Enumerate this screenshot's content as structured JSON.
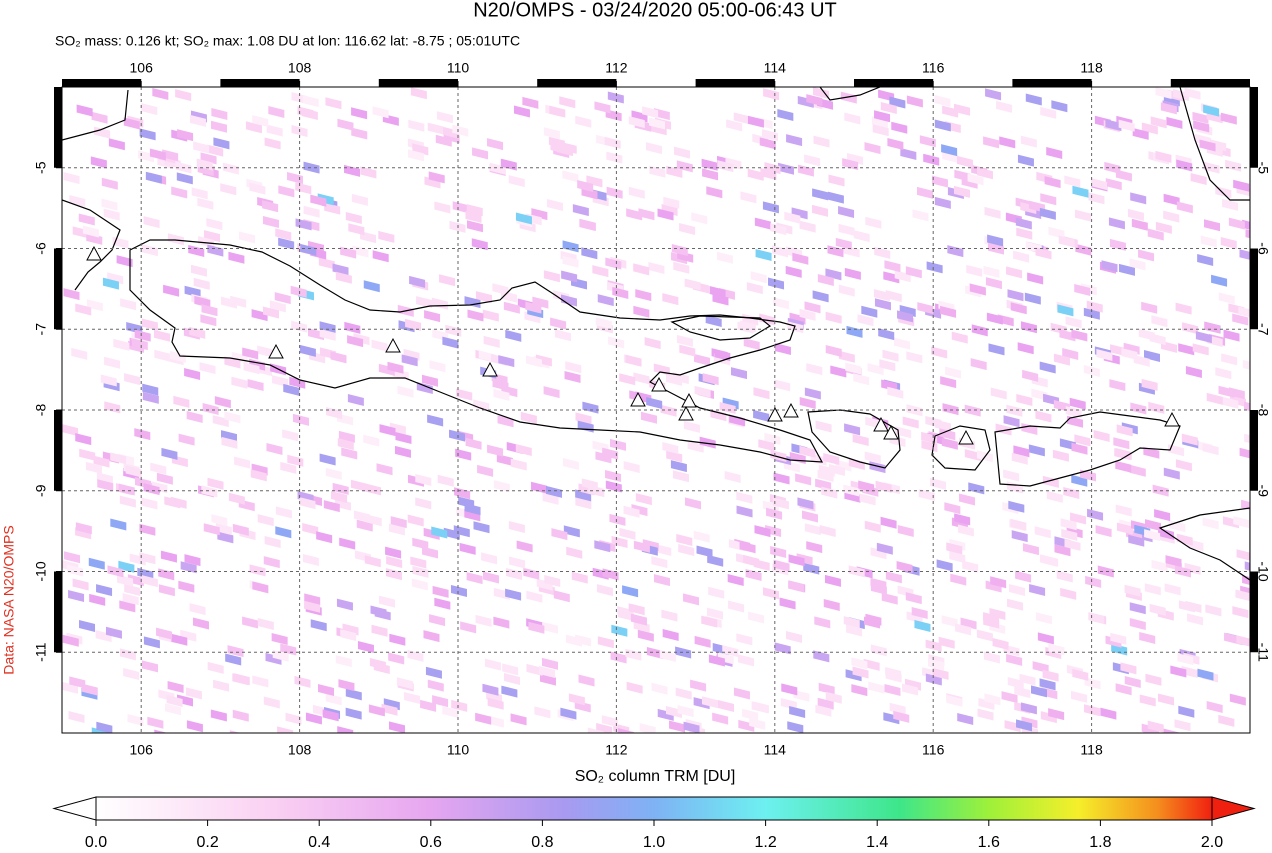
{
  "title": "N20/OMPS - 03/24/2020 05:00-06:43 UT",
  "subtitle": "SO₂ mass: 0.126 kt; SO₂ max: 1.08 DU at lon: 116.62 lat: -8.75 ; 05:01UTC",
  "map": {
    "xlim": [
      105,
      120
    ],
    "ylim": [
      -12,
      -4
    ],
    "xticks": [
      106,
      108,
      110,
      112,
      114,
      116,
      118
    ],
    "yticks": [
      -5,
      -6,
      -7,
      -8,
      -9,
      -10,
      -11
    ]
  },
  "colorbar": {
    "label": "SO₂ column TRM [DU]",
    "lim": [
      0,
      2
    ],
    "ticks": [
      {
        "value": 0,
        "label": "0.0"
      },
      {
        "value": 0.2,
        "label": "0.2"
      },
      {
        "value": 0.4,
        "label": "0.4"
      },
      {
        "value": 0.6,
        "label": "0.6"
      },
      {
        "value": 0.8,
        "label": "0.8"
      },
      {
        "value": 1,
        "label": "1.0"
      },
      {
        "value": 1.2,
        "label": "1.2"
      },
      {
        "value": 1.4,
        "label": "1.4"
      },
      {
        "value": 1.6,
        "label": "1.6"
      },
      {
        "value": 1.8,
        "label": "1.8"
      },
      {
        "value": 2,
        "label": "2.0"
      }
    ]
  },
  "credit": "Data: NASA N20/OMPS"
}
